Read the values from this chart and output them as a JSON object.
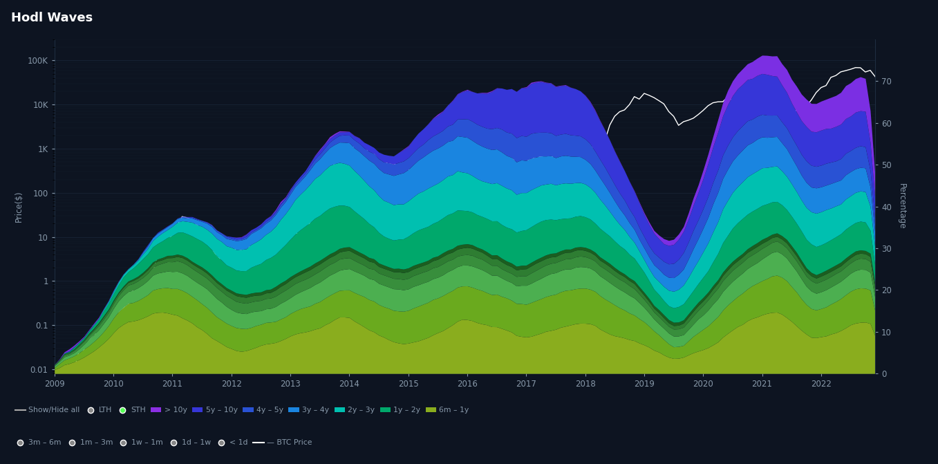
{
  "title": "Hodl Waves",
  "background_color": "#0d1421",
  "plot_bg_color": "#0d1421",
  "text_color": "#8899aa",
  "grid_color": "#1e2d40",
  "x_ticks": [
    2009,
    2010,
    2011,
    2012,
    2013,
    2014,
    2015,
    2016,
    2017,
    2018,
    2019,
    2020,
    2021,
    2022
  ],
  "left_yticks": [
    0.01,
    0.1,
    1,
    10,
    100,
    1000,
    10000,
    100000
  ],
  "left_yticklabels": [
    "0.01",
    "0.1",
    "1",
    "10",
    "100",
    "1K",
    "10K",
    "100K"
  ],
  "right_yticks": [
    0,
    10,
    20,
    30,
    40,
    50,
    60,
    70
  ],
  "ylabel_left": "Price($)",
  "ylabel_right": "Percentage",
  "layer_colors_bottom_to_top": [
    "#8aad1e",
    "#6aaa1e",
    "#4caf50",
    "#388e3c",
    "#2e7d32",
    "#1b5e20",
    "#00a86b",
    "#00c0b0",
    "#1a85e0",
    "#2952d4",
    "#3636d8",
    "#7b2fe3"
  ],
  "layer_labels_bottom_to_top": [
    "6m - 1y",
    "3m - 6m",
    "1m - 3m",
    "1w - 1m",
    "1d - 1w",
    "< 1d",
    "1y - 2y",
    "2y - 3y",
    "3y - 4y",
    "4y - 5y",
    "5y - 10y",
    "> 10y"
  ]
}
